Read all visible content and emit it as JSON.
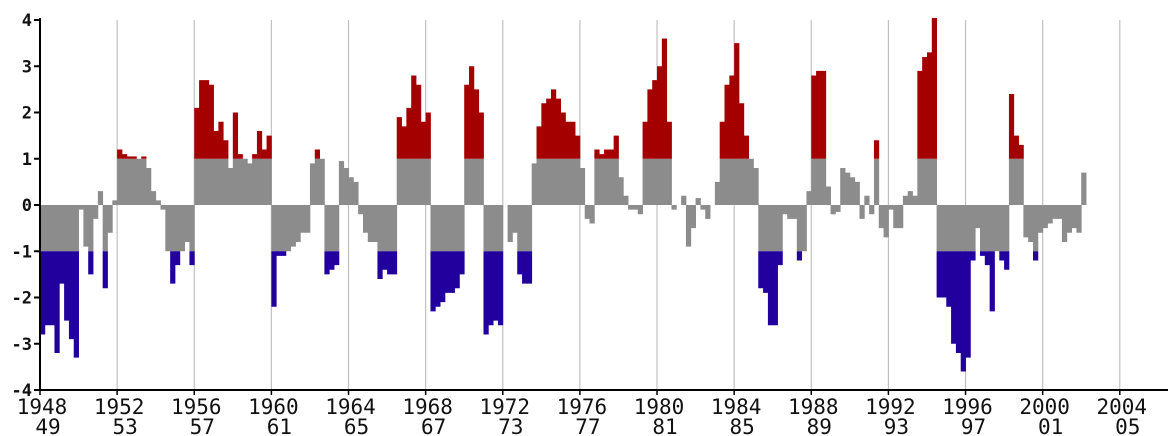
{
  "chart_data": {
    "type": "bar",
    "title": "",
    "xlabel": "",
    "ylabel": "",
    "ylim": [
      -4,
      4
    ],
    "xlim": [
      1948.0,
      2006.5
    ],
    "yticks": [
      "4",
      "3",
      "2",
      "1",
      "0",
      "-1",
      "-2",
      "-3",
      "-4"
    ],
    "xticks": [
      {
        "x": 1948,
        "top": "1948",
        "bottom": "49"
      },
      {
        "x": 1952,
        "top": "1952",
        "bottom": "53"
      },
      {
        "x": 1956,
        "top": "1956",
        "bottom": "57"
      },
      {
        "x": 1960,
        "top": "1960",
        "bottom": "61"
      },
      {
        "x": 1964,
        "top": "1964",
        "bottom": "65"
      },
      {
        "x": 1968,
        "top": "1968",
        "bottom": "67"
      },
      {
        "x": 1972,
        "top": "1972",
        "bottom": "73"
      },
      {
        "x": 1976,
        "top": "1976",
        "bottom": "77"
      },
      {
        "x": 1980,
        "top": "1980",
        "bottom": "81"
      },
      {
        "x": 1984,
        "top": "1984",
        "bottom": "85"
      },
      {
        "x": 1988,
        "top": "1988",
        "bottom": "89"
      },
      {
        "x": 1992,
        "top": "1992",
        "bottom": "93"
      },
      {
        "x": 1996,
        "top": "1996",
        "bottom": "97"
      },
      {
        "x": 2000,
        "top": "2000",
        "bottom": "01"
      },
      {
        "x": 2004,
        "top": "2004",
        "bottom": "05"
      }
    ],
    "thresholds": {
      "upper": 1,
      "lower": -1
    },
    "grid": "vertical",
    "colors": {
      "above_upper": "#a50000",
      "below_lower": "#22009e",
      "neutral": "#8c8c8c",
      "grid": "#c0c0c0",
      "axis": "#000000"
    },
    "step": 0.25,
    "start_x": 1948.0,
    "values": [
      -2.8,
      -2.6,
      -2.6,
      -3.2,
      -1.7,
      -2.5,
      -2.9,
      -3.3,
      -0.1,
      -0.9,
      -1.5,
      -0.3,
      0.3,
      -1.8,
      -0.6,
      0.1,
      1.2,
      1.1,
      1.05,
      1.05,
      1.0,
      1.05,
      0.8,
      0.3,
      0.1,
      -0.1,
      -1.0,
      -1.7,
      -1.3,
      -1.0,
      -0.8,
      -1.3,
      2.1,
      2.7,
      2.7,
      2.6,
      1.6,
      1.8,
      1.4,
      0.8,
      2.0,
      1.1,
      1.0,
      0.9,
      1.1,
      1.6,
      1.2,
      1.5,
      -2.2,
      -1.1,
      -1.1,
      -1.0,
      -0.9,
      -0.8,
      -0.6,
      -0.6,
      0.9,
      1.2,
      1.0,
      -1.5,
      -1.4,
      -1.3,
      0.95,
      0.8,
      0.6,
      0.5,
      -0.2,
      -0.6,
      -0.8,
      -0.8,
      -1.6,
      -1.4,
      -1.5,
      -1.5,
      1.9,
      1.7,
      2.1,
      2.8,
      2.6,
      1.8,
      2.0,
      -2.3,
      -2.2,
      -2.1,
      -1.9,
      -1.9,
      -1.8,
      -1.5,
      2.6,
      3.0,
      2.5,
      2.0,
      -2.8,
      -2.6,
      -2.5,
      -2.6,
      0.0,
      -0.8,
      -0.6,
      -1.5,
      -1.7,
      -1.7,
      0.9,
      1.7,
      2.2,
      2.3,
      2.5,
      2.3,
      2.0,
      1.8,
      1.8,
      1.5,
      0.8,
      -0.3,
      -0.4,
      1.2,
      1.1,
      1.2,
      1.2,
      1.5,
      0.6,
      0.2,
      -0.1,
      -0.1,
      -0.2,
      1.8,
      2.5,
      2.7,
      3.0,
      3.6,
      1.8,
      -0.1,
      0.0,
      0.2,
      -0.9,
      -0.5,
      0.15,
      -0.1,
      -0.3,
      0.0,
      0.5,
      1.8,
      2.6,
      2.8,
      3.5,
      2.2,
      1.5,
      1.0,
      0.8,
      -1.8,
      -1.9,
      -2.6,
      -2.6,
      -1.3,
      -0.2,
      -0.3,
      -0.3,
      -1.2,
      -1.0,
      0.3,
      2.8,
      2.9,
      2.9,
      0.4,
      -0.2,
      -0.15,
      0.8,
      0.7,
      0.6,
      0.5,
      -0.3,
      0.2,
      -0.2,
      1.4,
      -0.5,
      -0.7,
      -0.1,
      -0.5,
      -0.5,
      0.2,
      0.3,
      0.2,
      2.9,
      3.2,
      3.3,
      4.3,
      -2.0,
      -2.0,
      -2.2,
      -3.0,
      -3.2,
      -3.6,
      -3.3,
      -1.2,
      -0.5,
      -1.1,
      -1.3,
      -2.3,
      -1.0,
      -1.2,
      -1.4,
      2.4,
      1.5,
      1.3,
      -0.7,
      -0.8,
      -1.2,
      -0.6,
      -0.5,
      -0.4,
      -0.3,
      -0.3,
      -0.8,
      -0.6,
      -0.5,
      -0.6,
      0.7
    ]
  }
}
